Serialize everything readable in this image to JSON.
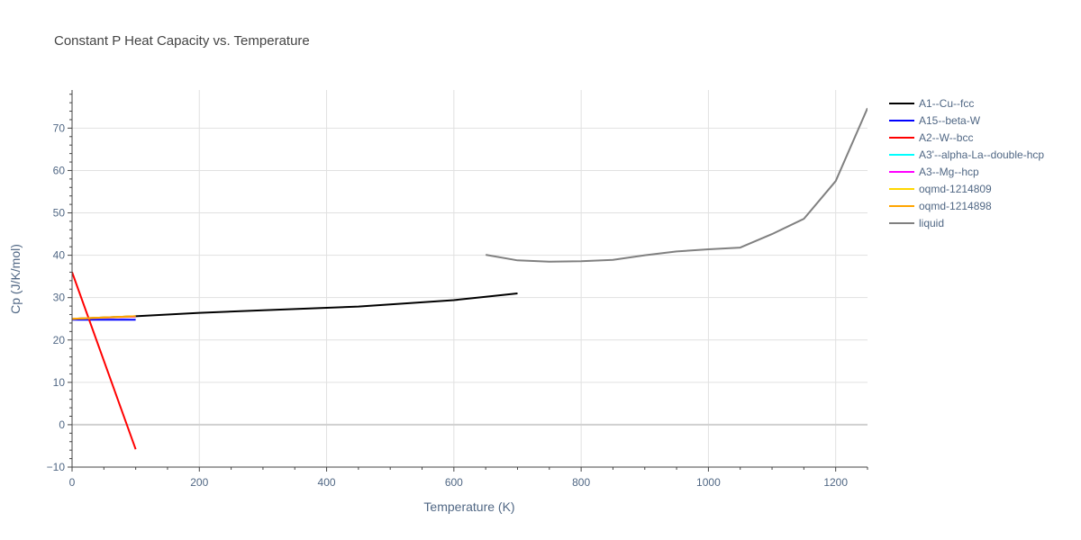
{
  "chart_data": {
    "type": "line",
    "title": "Constant P Heat Capacity vs. Temperature",
    "xlabel": "Temperature (K)",
    "ylabel": "Cp (J/K/mol)",
    "xlim": [
      0,
      1250
    ],
    "ylim": [
      -10,
      79
    ],
    "x_ticks": [
      0,
      200,
      400,
      600,
      800,
      1000,
      1200
    ],
    "y_ticks": [
      -10,
      0,
      10,
      20,
      30,
      40,
      50,
      60,
      70
    ],
    "grid": true,
    "legend_position": "right",
    "series": [
      {
        "name": "A1--Cu--fcc",
        "color": "#000000",
        "x": [
          0,
          100,
          200,
          300,
          450,
          600,
          650,
          700
        ],
        "y": [
          25.0,
          25.6,
          26.4,
          27.0,
          27.9,
          29.4,
          30.2,
          31.0
        ]
      },
      {
        "name": "A15--beta-W",
        "color": "#0000ff",
        "x": [
          0,
          100
        ],
        "y": [
          24.8,
          24.8
        ]
      },
      {
        "name": "A2--W--bcc",
        "color": "#ff0000",
        "x": [
          0,
          100
        ],
        "y": [
          36.0,
          -5.8
        ]
      },
      {
        "name": "A3'--alpha-La--double-hcp",
        "color": "#00ffff",
        "x": [
          0,
          100
        ],
        "y": [
          25.0,
          25.5
        ]
      },
      {
        "name": "A3--Mg--hcp",
        "color": "#ff00ff",
        "x": [
          0,
          100
        ],
        "y": [
          25.0,
          25.5
        ]
      },
      {
        "name": "oqmd-1214809",
        "color": "#ffd700",
        "x": [
          0,
          100
        ],
        "y": [
          25.0,
          25.6
        ]
      },
      {
        "name": "oqmd-1214898",
        "color": "#ffa500",
        "x": [
          0,
          100
        ],
        "y": [
          25.0,
          25.6
        ]
      },
      {
        "name": "liquid",
        "color": "#808080",
        "x": [
          650,
          700,
          750,
          800,
          850,
          900,
          950,
          1000,
          1050,
          1100,
          1150,
          1200,
          1250
        ],
        "y": [
          40.1,
          38.8,
          38.5,
          38.6,
          38.9,
          40.0,
          40.9,
          41.4,
          41.8,
          45.0,
          48.6,
          57.5,
          74.7
        ]
      }
    ]
  }
}
